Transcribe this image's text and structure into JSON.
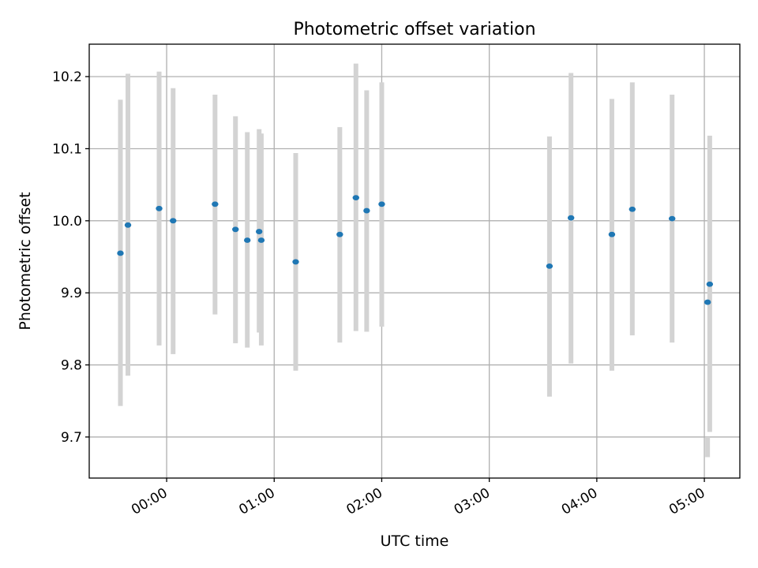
{
  "chart_data": {
    "type": "scatter",
    "title": "Photometric offset variation",
    "xlabel": "UTC time",
    "ylabel": "Photometric offset",
    "xlim": [
      -0.72,
      5.33
    ],
    "ylim": [
      9.643,
      10.245
    ],
    "grid": true,
    "colors": {
      "point": "#1f77b4",
      "errorbar": "#d3d3d3"
    },
    "x_ticks": [
      {
        "value": 0,
        "label": "00:00"
      },
      {
        "value": 1,
        "label": "01:00"
      },
      {
        "value": 2,
        "label": "02:00"
      },
      {
        "value": 3,
        "label": "03:00"
      },
      {
        "value": 4,
        "label": "04:00"
      },
      {
        "value": 5,
        "label": "05:00"
      }
    ],
    "y_ticks": [
      {
        "value": 9.7,
        "label": "9.7"
      },
      {
        "value": 9.8,
        "label": "9.8"
      },
      {
        "value": 9.9,
        "label": "9.9"
      },
      {
        "value": 10.0,
        "label": "10.0"
      },
      {
        "value": 10.1,
        "label": "10.1"
      },
      {
        "value": 10.2,
        "label": "10.2"
      }
    ],
    "points": [
      {
        "x": -0.43,
        "y": 9.955,
        "err_low": 9.743,
        "err_high": 10.168
      },
      {
        "x": -0.36,
        "y": 9.994,
        "err_low": 9.785,
        "err_high": 10.204
      },
      {
        "x": -0.07,
        "y": 10.017,
        "err_low": 9.827,
        "err_high": 10.207
      },
      {
        "x": 0.06,
        "y": 10.0,
        "err_low": 9.815,
        "err_high": 10.184
      },
      {
        "x": 0.45,
        "y": 10.023,
        "err_low": 9.87,
        "err_high": 10.175
      },
      {
        "x": 0.64,
        "y": 9.988,
        "err_low": 9.83,
        "err_high": 10.145
      },
      {
        "x": 0.75,
        "y": 9.973,
        "err_low": 9.824,
        "err_high": 10.123
      },
      {
        "x": 0.86,
        "y": 9.985,
        "err_low": 9.845,
        "err_high": 10.127
      },
      {
        "x": 0.88,
        "y": 9.973,
        "err_low": 9.827,
        "err_high": 10.121
      },
      {
        "x": 1.2,
        "y": 9.943,
        "err_low": 9.792,
        "err_high": 10.094
      },
      {
        "x": 1.61,
        "y": 9.981,
        "err_low": 9.831,
        "err_high": 10.13
      },
      {
        "x": 1.76,
        "y": 10.032,
        "err_low": 9.847,
        "err_high": 10.218
      },
      {
        "x": 1.86,
        "y": 10.014,
        "err_low": 9.846,
        "err_high": 10.181
      },
      {
        "x": 2.0,
        "y": 10.023,
        "err_low": 9.853,
        "err_high": 10.192
      },
      {
        "x": 3.56,
        "y": 9.937,
        "err_low": 9.756,
        "err_high": 10.117
      },
      {
        "x": 3.76,
        "y": 10.004,
        "err_low": 9.802,
        "err_high": 10.205
      },
      {
        "x": 4.14,
        "y": 9.981,
        "err_low": 9.792,
        "err_high": 10.169
      },
      {
        "x": 4.33,
        "y": 10.016,
        "err_low": 9.841,
        "err_high": 10.192
      },
      {
        "x": 4.7,
        "y": 10.003,
        "err_low": 9.831,
        "err_high": 10.175
      },
      {
        "x": 5.03,
        "y": 9.887,
        "err_low": 9.672,
        "err_high": 9.7
      },
      {
        "x": 5.05,
        "y": 9.912,
        "err_low": 9.707,
        "err_high": 10.118
      }
    ]
  }
}
